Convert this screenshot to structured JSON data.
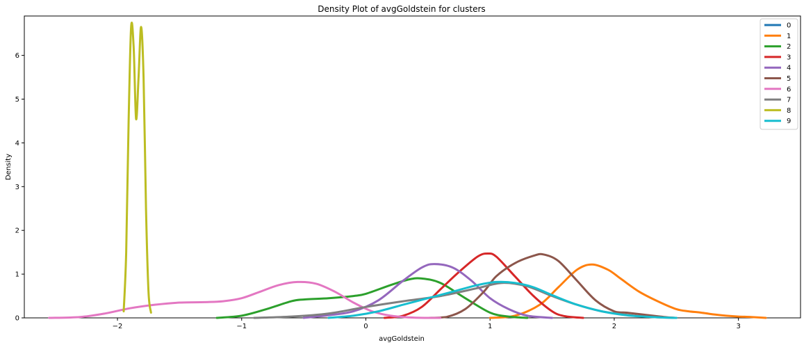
{
  "chart_data": {
    "type": "line",
    "title": "Density Plot of avgGoldstein for clusters",
    "xlabel": "avgGoldstein",
    "ylabel": "Density",
    "xlim": [
      -2.75,
      3.5
    ],
    "ylim": [
      0,
      6.9
    ],
    "xticks": [
      -2,
      -1,
      0,
      1,
      2,
      3
    ],
    "yticks": [
      0,
      1,
      2,
      3,
      4,
      5,
      6
    ],
    "grid": false,
    "legend_position": "top-right",
    "series": [
      {
        "name": "0",
        "color": "#1f77b4",
        "x": [],
        "y": []
      },
      {
        "name": "1",
        "color": "#ff7f0e",
        "x": [
          1.0,
          1.2,
          1.4,
          1.55,
          1.7,
          1.82,
          1.95,
          2.05,
          2.2,
          2.35,
          2.5,
          2.6,
          2.7,
          2.8,
          2.9,
          3.0,
          3.1,
          3.22
        ],
        "y": [
          0.0,
          0.05,
          0.3,
          0.7,
          1.1,
          1.22,
          1.1,
          0.9,
          0.6,
          0.38,
          0.2,
          0.15,
          0.12,
          0.08,
          0.05,
          0.03,
          0.02,
          0.0
        ]
      },
      {
        "name": "2",
        "color": "#2ca02c",
        "x": [
          -1.2,
          -1.0,
          -0.8,
          -0.6,
          -0.5,
          -0.3,
          -0.1,
          0.0,
          0.2,
          0.35,
          0.45,
          0.6,
          0.8,
          1.0,
          1.15,
          1.3
        ],
        "y": [
          0.0,
          0.05,
          0.2,
          0.38,
          0.42,
          0.45,
          0.5,
          0.55,
          0.75,
          0.88,
          0.9,
          0.8,
          0.45,
          0.12,
          0.03,
          0.0
        ]
      },
      {
        "name": "3",
        "color": "#d62728",
        "x": [
          0.15,
          0.3,
          0.45,
          0.6,
          0.75,
          0.9,
          0.98,
          1.05,
          1.2,
          1.35,
          1.5,
          1.6,
          1.75
        ],
        "y": [
          0.0,
          0.05,
          0.25,
          0.65,
          1.05,
          1.4,
          1.47,
          1.4,
          0.95,
          0.5,
          0.15,
          0.04,
          0.0
        ]
      },
      {
        "name": "4",
        "color": "#9467bd",
        "x": [
          -0.5,
          -0.3,
          -0.1,
          0.1,
          0.3,
          0.45,
          0.55,
          0.7,
          0.85,
          1.0,
          1.15,
          1.3,
          1.5
        ],
        "y": [
          0.0,
          0.06,
          0.15,
          0.4,
          0.85,
          1.15,
          1.23,
          1.15,
          0.85,
          0.45,
          0.2,
          0.05,
          0.0
        ]
      },
      {
        "name": "5",
        "color": "#8c564b",
        "x": [
          0.5,
          0.65,
          0.8,
          0.95,
          1.05,
          1.2,
          1.35,
          1.43,
          1.55,
          1.7,
          1.85,
          2.0,
          2.1,
          2.25,
          2.4,
          2.5
        ],
        "y": [
          0.0,
          0.02,
          0.2,
          0.6,
          0.95,
          1.25,
          1.42,
          1.45,
          1.3,
          0.85,
          0.4,
          0.15,
          0.12,
          0.07,
          0.02,
          0.0
        ]
      },
      {
        "name": "6",
        "color": "#e377c2",
        "x": [
          -2.55,
          -2.3,
          -2.1,
          -1.9,
          -1.7,
          -1.5,
          -1.3,
          -1.15,
          -1.0,
          -0.85,
          -0.7,
          -0.55,
          -0.4,
          -0.25,
          -0.1,
          0.05,
          0.2,
          0.35,
          0.5,
          0.6
        ],
        "y": [
          0.0,
          0.02,
          0.1,
          0.22,
          0.3,
          0.35,
          0.36,
          0.38,
          0.45,
          0.6,
          0.75,
          0.82,
          0.78,
          0.6,
          0.35,
          0.15,
          0.05,
          0.01,
          0.0,
          0.0
        ]
      },
      {
        "name": "7",
        "color": "#7f7f7f",
        "x": [
          -0.9,
          -0.6,
          -0.3,
          0.0,
          0.3,
          0.6,
          0.9,
          1.1,
          1.3,
          1.5,
          1.7,
          1.9,
          2.1,
          2.3,
          2.5
        ],
        "y": [
          0.0,
          0.03,
          0.1,
          0.25,
          0.38,
          0.5,
          0.68,
          0.8,
          0.72,
          0.5,
          0.3,
          0.15,
          0.07,
          0.02,
          0.0
        ]
      },
      {
        "name": "8",
        "color": "#bcbd22",
        "x": [
          -1.95,
          -1.93,
          -1.91,
          -1.89,
          -1.87,
          -1.85,
          -1.83,
          -1.81,
          -1.79,
          -1.77,
          -1.75,
          -1.73
        ],
        "y": [
          0.15,
          1.5,
          4.5,
          6.65,
          6.2,
          4.55,
          5.5,
          6.65,
          5.5,
          2.5,
          0.6,
          0.12
        ]
      },
      {
        "name": "9",
        "color": "#17becf",
        "x": [
          -0.3,
          -0.1,
          0.1,
          0.3,
          0.5,
          0.7,
          0.9,
          1.05,
          1.2,
          1.35,
          1.5,
          1.7,
          1.9,
          2.1,
          2.3,
          2.5
        ],
        "y": [
          0.0,
          0.05,
          0.15,
          0.3,
          0.45,
          0.6,
          0.75,
          0.82,
          0.8,
          0.7,
          0.52,
          0.3,
          0.15,
          0.06,
          0.02,
          0.0
        ]
      }
    ]
  }
}
